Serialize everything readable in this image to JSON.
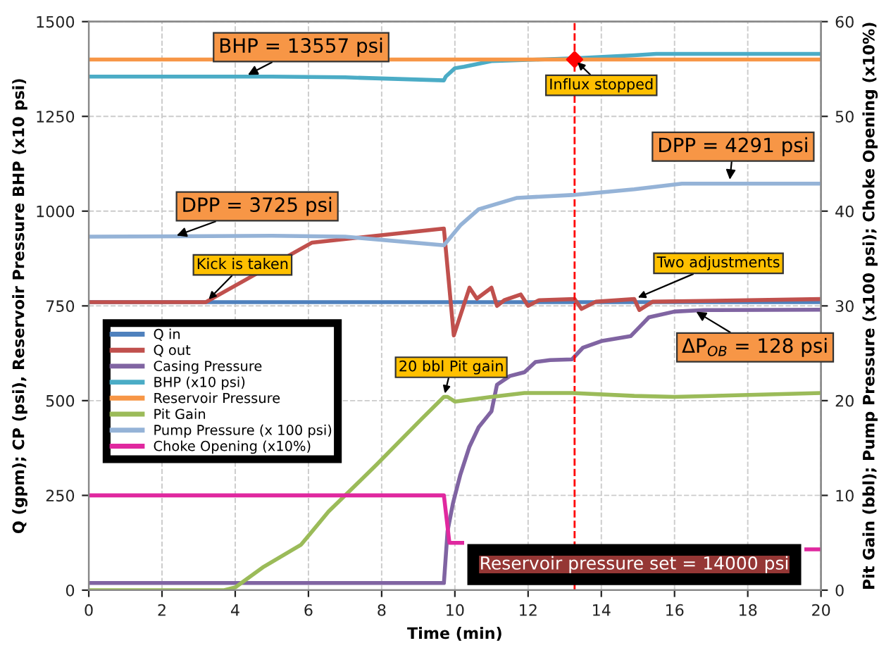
{
  "chart_data": {
    "type": "line",
    "xlabel": "Time (min)",
    "ylabel": "Q (gpm); CP (psi), Reservoir Pressure BHP (x10 psi)",
    "y2label": "Pit Gain (bbl); Pump Pressure (x100 psi); Choke Opening (x10%)",
    "xlim": [
      0,
      20
    ],
    "xticks": [
      0,
      2,
      4,
      6,
      8,
      10,
      12,
      14,
      16,
      18,
      20
    ],
    "ylim": [
      0,
      1500
    ],
    "yticks": [
      0,
      250,
      500,
      750,
      1000,
      1250,
      1500
    ],
    "y2lim": [
      0,
      60
    ],
    "y2ticks": [
      0,
      10,
      20,
      30,
      40,
      50,
      60
    ],
    "grid": true,
    "legend": "center left",
    "marker": "none",
    "line_style": "solid",
    "series": [
      {
        "name": "Q in",
        "color": "#4f81bd",
        "x": [
          0,
          20
        ],
        "values": [
          760,
          760
        ]
      },
      {
        "name": "Q out",
        "color": "#c0504d",
        "x": [
          0,
          3.2,
          6.1,
          9.7,
          9.97,
          10.4,
          10.6,
          11.0,
          11.15,
          11.35,
          11.8,
          12.0,
          12.3,
          13.27,
          13.46,
          13.85,
          14.9,
          15.04,
          15.4,
          20
        ],
        "values": [
          760,
          760,
          917,
          954,
          672,
          798,
          769,
          798,
          750,
          765,
          780,
          750,
          765,
          768,
          742,
          761,
          768,
          739,
          761,
          768
        ]
      },
      {
        "name": "Casing Pressure",
        "color": "#8064a2",
        "x": [
          0,
          9.7,
          9.8,
          9.95,
          10.15,
          10.4,
          10.65,
          10.9,
          11.0,
          11.15,
          11.5,
          11.9,
          12.2,
          12.6,
          13.2,
          13.5,
          14.0,
          14.8,
          15.0,
          15.3,
          16.0,
          16.8,
          20
        ],
        "values": [
          19,
          19,
          156,
          230,
          305,
          379,
          430,
          460,
          472,
          542,
          565,
          575,
          602,
          607,
          609,
          640,
          657,
          670,
          690,
          720,
          735,
          739,
          740
        ]
      },
      {
        "name": "BHP (x10 psi)",
        "color": "#4bacc6",
        "x": [
          0,
          5,
          7,
          9.7,
          9.75,
          10.0,
          10.25,
          11.0,
          12.3,
          13.27,
          14.9,
          15.5,
          20
        ],
        "values": [
          1355,
          1355,
          1353,
          1345,
          1355,
          1377,
          1381,
          1396,
          1400,
          1403,
          1411,
          1415,
          1415
        ]
      },
      {
        "name": "Reservoir Pressure",
        "color": "#f79646",
        "x": [
          0,
          20
        ],
        "values": [
          1400,
          1400
        ]
      },
      {
        "name": "Pit Gain",
        "color": "#9bbb59",
        "axis": "y2",
        "x": [
          0,
          3.7,
          4.0,
          4.75,
          5.8,
          6.55,
          7.85,
          9.1,
          9.7,
          9.8,
          10.0,
          11.0,
          11.9,
          13.2,
          14.9,
          16.0,
          20
        ],
        "values": [
          0,
          0,
          0.3,
          2.4,
          4.8,
          8.3,
          13.2,
          18.1,
          20.4,
          20.4,
          19.9,
          20.4,
          20.8,
          20.8,
          20.5,
          20.4,
          20.8
        ]
      },
      {
        "name": "Pump Pressure (x 100 psi)",
        "color": "#95b3d7",
        "axis": "y2",
        "x": [
          0,
          5,
          7,
          9.7,
          10.15,
          10.65,
          11.7,
          13.2,
          14.9,
          16.2,
          20
        ],
        "values": [
          37.3,
          37.4,
          37.3,
          36.4,
          38.5,
          40.2,
          41.4,
          41.7,
          42.3,
          42.9,
          42.9
        ]
      },
      {
        "name": "Choke Opening (x10%)",
        "color": "#e0289f",
        "axis": "y2",
        "x": [
          0,
          9.7,
          9.85,
          10.2,
          10.3,
          19.6,
          20
        ],
        "values": [
          10,
          10,
          5,
          5,
          null,
          4.3,
          4.3
        ]
      },
      {
        "type": "scatter",
        "color": "#ff0000",
        "marker": "diamond",
        "x": [
          13.27
        ],
        "values": [
          1400
        ]
      }
    ],
    "ref_lines": [
      {
        "axis": "x",
        "value": 13.27,
        "color": "#ff0000",
        "line_style": "dashed"
      }
    ],
    "annotations": [
      {
        "text": "BHP = 13557 psi",
        "x": 4.25,
        "y": 1355
      },
      {
        "text": "DPP = 3725 psi",
        "x": 2.3,
        "y": 932
      },
      {
        "text": "Kick is taken",
        "x": 3.2,
        "y": 760
      },
      {
        "text": "Influx stopped",
        "x": 13.27,
        "y": 1400
      },
      {
        "text": "DPP = 4291 psi",
        "x": 17.5,
        "y": 1073
      },
      {
        "text": "Two adjustments",
        "x": 14.9,
        "y": 768
      },
      {
        "text": "20 bbl Pit gain",
        "x": 9.7,
        "y": 509
      },
      {
        "text": "ΔP$_{OB}$ = 128 psi",
        "x": 16.5,
        "y": 740
      },
      "Reservoir pressure set = 14000 psi"
    ]
  }
}
